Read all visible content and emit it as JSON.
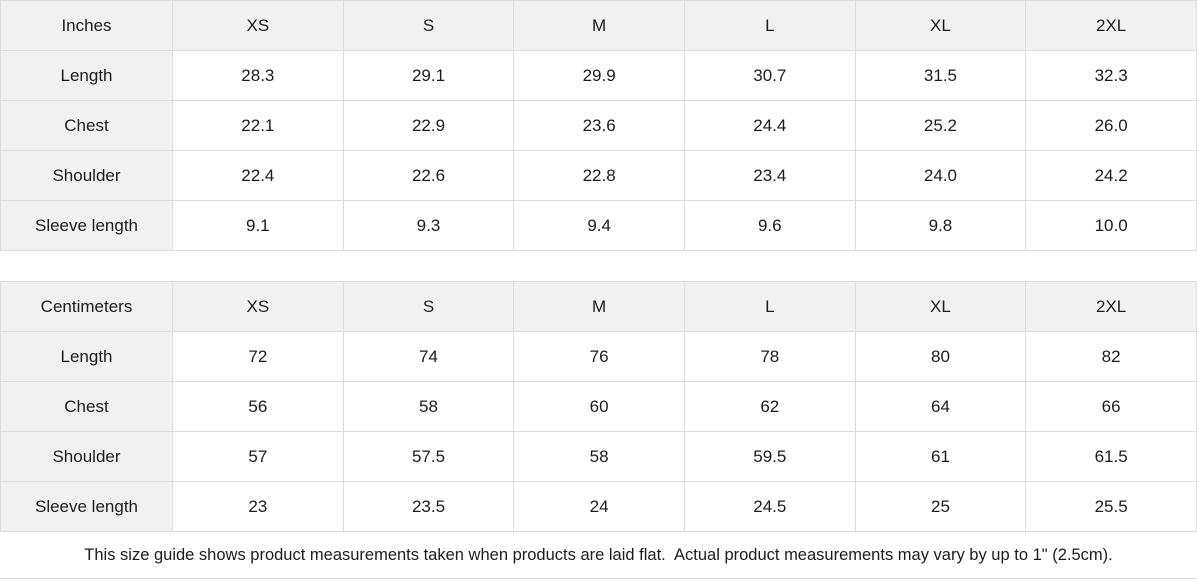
{
  "chart_data": [
    {
      "type": "table",
      "title": "Inches",
      "columns": [
        "Inches",
        "XS",
        "S",
        "M",
        "L",
        "XL",
        "2XL"
      ],
      "rows": [
        [
          "Length",
          "28.3",
          "29.1",
          "29.9",
          "30.7",
          "31.5",
          "32.3"
        ],
        [
          "Chest",
          "22.1",
          "22.9",
          "23.6",
          "24.4",
          "25.2",
          "26.0"
        ],
        [
          "Shoulder",
          "22.4",
          "22.6",
          "22.8",
          "23.4",
          "24.0",
          "24.2"
        ],
        [
          "Sleeve length",
          "9.1",
          "9.3",
          "9.4",
          "9.6",
          "9.8",
          "10.0"
        ]
      ]
    },
    {
      "type": "table",
      "title": "Centimeters",
      "columns": [
        "Centimeters",
        "XS",
        "S",
        "M",
        "L",
        "XL",
        "2XL"
      ],
      "rows": [
        [
          "Length",
          "72",
          "74",
          "76",
          "78",
          "80",
          "82"
        ],
        [
          "Chest",
          "56",
          "58",
          "60",
          "62",
          "64",
          "66"
        ],
        [
          "Shoulder",
          "57",
          "57.5",
          "58",
          "59.5",
          "61",
          "61.5"
        ],
        [
          "Sleeve length",
          "23",
          "23.5",
          "24",
          "24.5",
          "25",
          "25.5"
        ]
      ]
    }
  ],
  "footer": {
    "note": "This size guide shows product measurements taken when products are laid flat.  Actual product measurements may vary by up to 1\" (2.5cm)."
  },
  "colors": {
    "header_bg": "#f1f1f1",
    "border": "#dcdcdc",
    "text": "#1c1c1c"
  }
}
